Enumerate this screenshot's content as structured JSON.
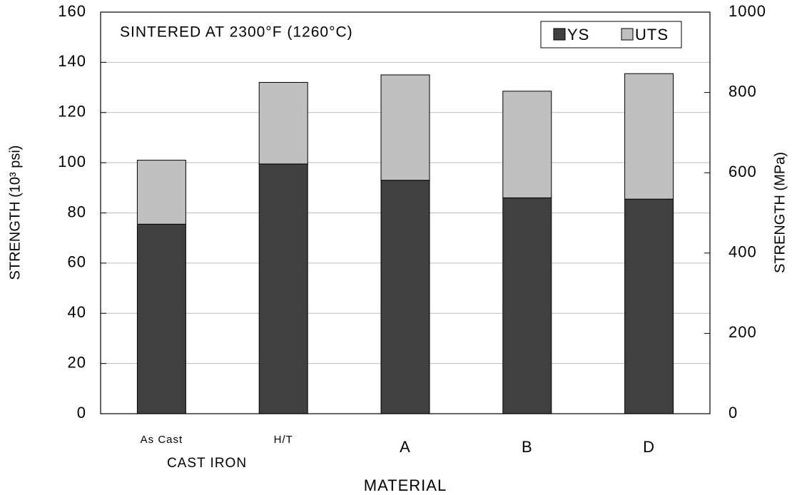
{
  "chart_data": {
    "type": "bar",
    "stacked": true,
    "annotation": "SINTERED AT 2300°F (1260°C)",
    "categories": [
      "As Cast",
      "H/T",
      "A",
      "B",
      "D"
    ],
    "category_group": "CAST IRON",
    "xlabel": "MATERIAL",
    "ylabel": "STRENGTH (10³ psi)",
    "y2label": "STRENGTH (MPa)",
    "series": [
      {
        "name": "YS",
        "color": "#404040",
        "values": [
          75.5,
          99.5,
          93,
          86,
          85.5
        ]
      },
      {
        "name": "UTS",
        "color": "#c0c0c0",
        "values": [
          25.5,
          32.5,
          42,
          42.5,
          50
        ]
      }
    ],
    "ylim": [
      0,
      160
    ],
    "yticks": [
      0,
      20,
      40,
      60,
      80,
      100,
      120,
      140,
      160
    ],
    "y2lim": [
      0,
      1000
    ],
    "y2ticks": [
      0,
      200,
      400,
      600,
      800,
      1000
    ],
    "grid": true,
    "legend": "upper right"
  }
}
